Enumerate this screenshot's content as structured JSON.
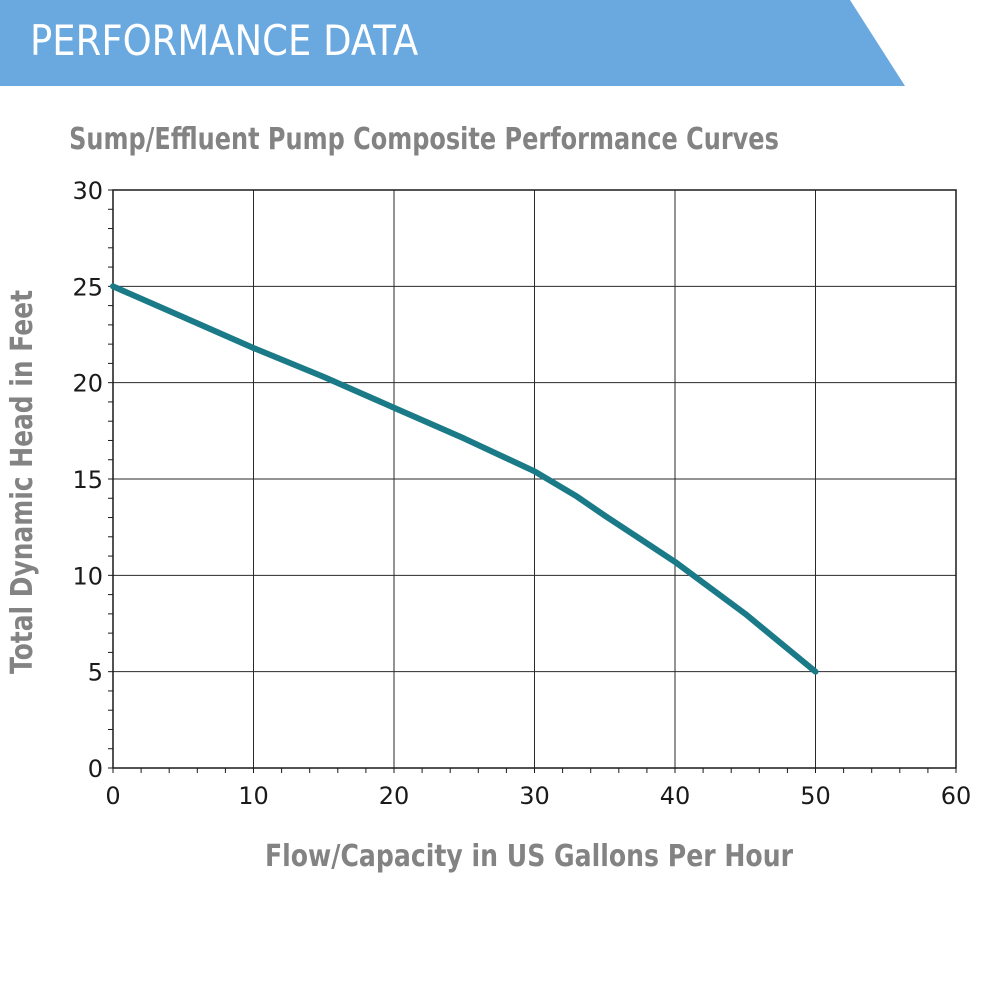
{
  "banner": {
    "title": "PERFORMANCE DATA",
    "color": "#6aa8e0"
  },
  "chart_data": {
    "type": "line",
    "title": "Sump/Effluent Pump Composite Performance Curves",
    "xlabel": "Flow/Capacity in US Gallons Per Hour",
    "ylabel": "Total Dynamic Head in Feet",
    "xlim": [
      0,
      60
    ],
    "ylim": [
      0,
      30
    ],
    "x_ticks": [
      "0",
      "10",
      "20",
      "30",
      "40",
      "50",
      "60"
    ],
    "y_ticks": [
      "0",
      "5",
      "10",
      "15",
      "20",
      "25",
      "30"
    ],
    "grid": true,
    "line_color": "#1a7a87",
    "series": [
      {
        "x": [
          0,
          5,
          10,
          15,
          20,
          25,
          30,
          33,
          35,
          40,
          45,
          50
        ],
        "values": [
          25,
          23.4,
          21.8,
          20.3,
          18.7,
          17.1,
          15.4,
          14.1,
          13.1,
          10.7,
          8.0,
          5.0
        ]
      }
    ]
  }
}
